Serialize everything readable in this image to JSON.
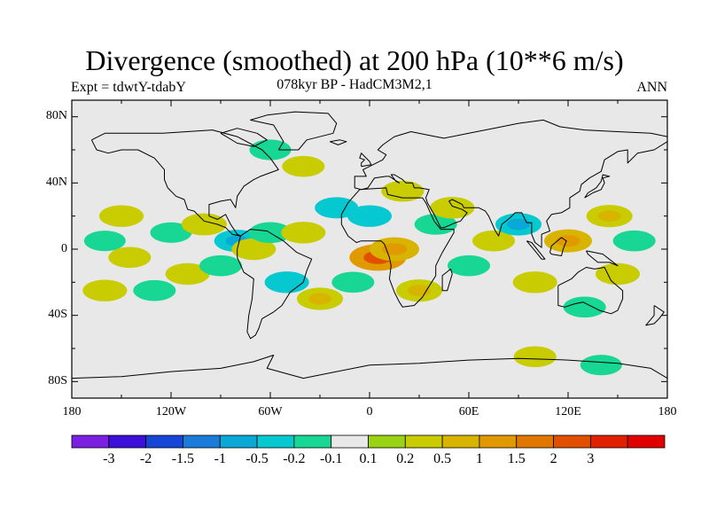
{
  "title": "Divergence (smoothed) at 200 hPa (10**6 m/s)",
  "subtitle_left": "Expt = tdwtY-tdabY",
  "subtitle_center": "078kyr BP - HadCM3M2,1",
  "subtitle_right": "ANN",
  "lat_labels": [
    "80N",
    "40N",
    "0",
    "40S",
    "80S"
  ],
  "lon_labels": [
    "180",
    "120W",
    "60W",
    "0",
    "60E",
    "120E",
    "180"
  ],
  "colorbar": {
    "colors": [
      "#7b1fe0",
      "#3c10d8",
      "#1646d6",
      "#1a7cd8",
      "#0aa8d6",
      "#06c8d0",
      "#18d694",
      "#e8e8e8",
      "#9ad214",
      "#c8cc00",
      "#d8b400",
      "#e09a00",
      "#e07800",
      "#e05000",
      "#e02000",
      "#e00000"
    ],
    "labels": [
      "-3",
      "-2",
      "-1.5",
      "-1",
      "-0.5",
      "-0.2",
      "-0.1",
      "0.1",
      "0.2",
      "0.5",
      "1",
      "1.5",
      "2",
      "3"
    ]
  },
  "chart_data": {
    "type": "heatmap",
    "title": "Divergence (smoothed) at 200 hPa (10**6 m/s)",
    "xlim": [
      -180,
      180
    ],
    "ylim": [
      -90,
      90
    ],
    "levels": [
      -3,
      -2,
      -1.5,
      -1,
      -0.5,
      -0.2,
      -0.1,
      0.1,
      0.2,
      0.5,
      1,
      1.5,
      2,
      3
    ],
    "projection": "cylindrical equidistant",
    "blobs": [
      {
        "lon": -150,
        "lat": 20,
        "value": 0.3
      },
      {
        "lon": -160,
        "lat": 5,
        "value": -0.15
      },
      {
        "lon": -145,
        "lat": -5,
        "value": 0.2
      },
      {
        "lon": -120,
        "lat": 10,
        "value": -0.15
      },
      {
        "lon": -100,
        "lat": 15,
        "value": 0.35
      },
      {
        "lon": -80,
        "lat": 5,
        "value": -0.4
      },
      {
        "lon": -70,
        "lat": 0,
        "value": 0.3
      },
      {
        "lon": -60,
        "lat": 10,
        "value": -0.2
      },
      {
        "lon": -40,
        "lat": 10,
        "value": 0.3
      },
      {
        "lon": -20,
        "lat": 25,
        "value": -0.25
      },
      {
        "lon": -110,
        "lat": -15,
        "value": 0.3
      },
      {
        "lon": -90,
        "lat": -10,
        "value": -0.2
      },
      {
        "lon": -130,
        "lat": -25,
        "value": -0.2
      },
      {
        "lon": -160,
        "lat": -25,
        "value": 0.3
      },
      {
        "lon": -50,
        "lat": -20,
        "value": -0.3
      },
      {
        "lon": -30,
        "lat": -30,
        "value": 0.4
      },
      {
        "lon": -10,
        "lat": -20,
        "value": -0.2
      },
      {
        "lon": 5,
        "lat": -5,
        "value": 1.0
      },
      {
        "lon": 15,
        "lat": 0,
        "value": 0.6
      },
      {
        "lon": 0,
        "lat": 20,
        "value": -0.3
      },
      {
        "lon": 20,
        "lat": 35,
        "value": 0.2
      },
      {
        "lon": 40,
        "lat": 15,
        "value": -0.2
      },
      {
        "lon": 50,
        "lat": 25,
        "value": 0.3
      },
      {
        "lon": 30,
        "lat": -25,
        "value": 0.4
      },
      {
        "lon": 60,
        "lat": -10,
        "value": -0.2
      },
      {
        "lon": 75,
        "lat": 5,
        "value": 0.2
      },
      {
        "lon": 90,
        "lat": 15,
        "value": -0.4
      },
      {
        "lon": 100,
        "lat": -20,
        "value": 0.3
      },
      {
        "lon": 120,
        "lat": 5,
        "value": 0.5
      },
      {
        "lon": 145,
        "lat": 20,
        "value": 0.4
      },
      {
        "lon": 160,
        "lat": 5,
        "value": -0.2
      },
      {
        "lon": 150,
        "lat": -15,
        "value": 0.3
      },
      {
        "lon": 130,
        "lat": -35,
        "value": -0.2
      },
      {
        "lon": -60,
        "lat": 60,
        "value": -0.15
      },
      {
        "lon": -40,
        "lat": 50,
        "value": 0.2
      },
      {
        "lon": 100,
        "lat": -65,
        "value": 0.2
      },
      {
        "lon": 140,
        "lat": -70,
        "value": -0.15
      }
    ]
  }
}
